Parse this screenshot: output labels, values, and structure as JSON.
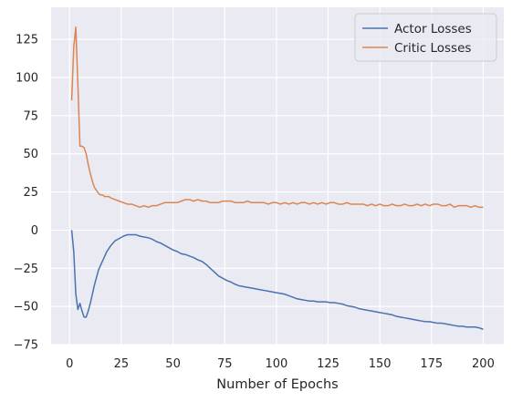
{
  "chart_data": {
    "type": "line",
    "title": "",
    "xlabel": "Number of Epochs",
    "ylabel": "",
    "xlim": [
      -8.95,
      209.95
    ],
    "ylim": [
      -75,
      146
    ],
    "xticks": [
      0,
      25,
      50,
      75,
      100,
      125,
      150,
      175,
      200
    ],
    "yticks": [
      -75,
      -50,
      -25,
      0,
      25,
      50,
      75,
      100,
      125
    ],
    "grid": true,
    "legend_position": "top-right",
    "series": [
      {
        "name": "Actor Losses",
        "color": "#4c72b0",
        "x": [
          1,
          2,
          3,
          4,
          5,
          6,
          7,
          8,
          9,
          10,
          11,
          12,
          13,
          14,
          15,
          16,
          17,
          18,
          19,
          20,
          22,
          24,
          26,
          28,
          30,
          32,
          34,
          36,
          38,
          40,
          42,
          44,
          46,
          48,
          50,
          52,
          54,
          56,
          58,
          60,
          62,
          64,
          66,
          68,
          70,
          72,
          74,
          76,
          78,
          80,
          82,
          84,
          86,
          88,
          90,
          92,
          94,
          96,
          98,
          100,
          102,
          104,
          106,
          108,
          110,
          112,
          114,
          116,
          118,
          120,
          122,
          124,
          126,
          128,
          130,
          132,
          134,
          136,
          138,
          140,
          142,
          144,
          146,
          148,
          150,
          152,
          154,
          156,
          158,
          160,
          162,
          164,
          166,
          168,
          170,
          172,
          174,
          176,
          178,
          180,
          182,
          184,
          186,
          188,
          190,
          192,
          194,
          196,
          198,
          200
        ],
        "values": [
          0,
          -14,
          -42,
          -52,
          -48,
          -53,
          -57,
          -57,
          -53,
          -48,
          -42,
          -36,
          -31,
          -26,
          -23,
          -20,
          -17,
          -14,
          -12,
          -10,
          -7,
          -5.5,
          -4,
          -3,
          -3,
          -3,
          -4,
          -4.5,
          -5,
          -6,
          -7.5,
          -8.5,
          -10,
          -11.5,
          -13,
          -14,
          -15.5,
          -16,
          -17,
          -18,
          -19.5,
          -20.5,
          -22.5,
          -25,
          -27.5,
          -30,
          -31.5,
          -33,
          -34,
          -35.5,
          -36.5,
          -37,
          -37.5,
          -38,
          -38.5,
          -39,
          -39.5,
          -40,
          -40.5,
          -41,
          -41.5,
          -42,
          -43,
          -44,
          -45,
          -45.5,
          -46,
          -46.5,
          -46.5,
          -47,
          -47,
          -47,
          -47.5,
          -47.5,
          -48,
          -48.5,
          -49.5,
          -50,
          -50.5,
          -51.5,
          -52,
          -52.5,
          -53,
          -53.5,
          -54,
          -54.5,
          -55,
          -55.5,
          -56.5,
          -57,
          -57.5,
          -58,
          -58.5,
          -59,
          -59.5,
          -60,
          -60,
          -60.5,
          -61,
          -61,
          -61.5,
          -62,
          -62.5,
          -63,
          -63,
          -63.5,
          -63.5,
          -63.5,
          -64,
          -65
        ]
      },
      {
        "name": "Critic Losses",
        "color": "#dd8452",
        "x": [
          1,
          2,
          3,
          4,
          5,
          6,
          7,
          8,
          9,
          10,
          11,
          12,
          13,
          14,
          15,
          16,
          17,
          18,
          19,
          20,
          22,
          24,
          26,
          28,
          30,
          32,
          34,
          36,
          38,
          40,
          42,
          44,
          46,
          48,
          50,
          52,
          54,
          56,
          58,
          60,
          62,
          64,
          66,
          68,
          70,
          72,
          74,
          76,
          78,
          80,
          82,
          84,
          86,
          88,
          90,
          92,
          94,
          96,
          98,
          100,
          102,
          104,
          106,
          108,
          110,
          112,
          114,
          116,
          118,
          120,
          122,
          124,
          126,
          128,
          130,
          132,
          134,
          136,
          138,
          140,
          142,
          144,
          146,
          148,
          150,
          152,
          154,
          156,
          158,
          160,
          162,
          164,
          166,
          168,
          170,
          172,
          174,
          176,
          178,
          180,
          182,
          184,
          186,
          188,
          190,
          192,
          194,
          196,
          198,
          200
        ],
        "values": [
          85,
          120,
          133,
          95,
          55,
          55,
          54,
          50,
          43,
          37,
          32,
          28,
          26,
          24,
          23,
          23,
          22,
          22,
          22,
          21,
          20,
          19,
          18,
          17,
          17,
          16,
          15,
          16,
          15,
          16,
          16,
          17,
          18,
          18,
          18,
          18,
          19,
          20,
          20,
          19,
          20,
          19,
          19,
          18,
          18,
          18,
          19,
          19,
          19,
          18,
          18,
          18,
          19,
          18,
          18,
          18,
          18,
          17,
          18,
          18,
          17,
          18,
          17,
          18,
          17,
          18,
          18,
          17,
          18,
          17,
          18,
          17,
          18,
          18,
          17,
          17,
          18,
          17,
          17,
          17,
          17,
          16,
          17,
          16,
          17,
          16,
          16,
          17,
          16,
          16,
          17,
          16,
          16,
          17,
          16,
          17,
          16,
          17,
          17,
          16,
          16,
          17,
          15,
          16,
          16,
          16,
          15,
          16,
          15,
          15
        ]
      }
    ]
  }
}
